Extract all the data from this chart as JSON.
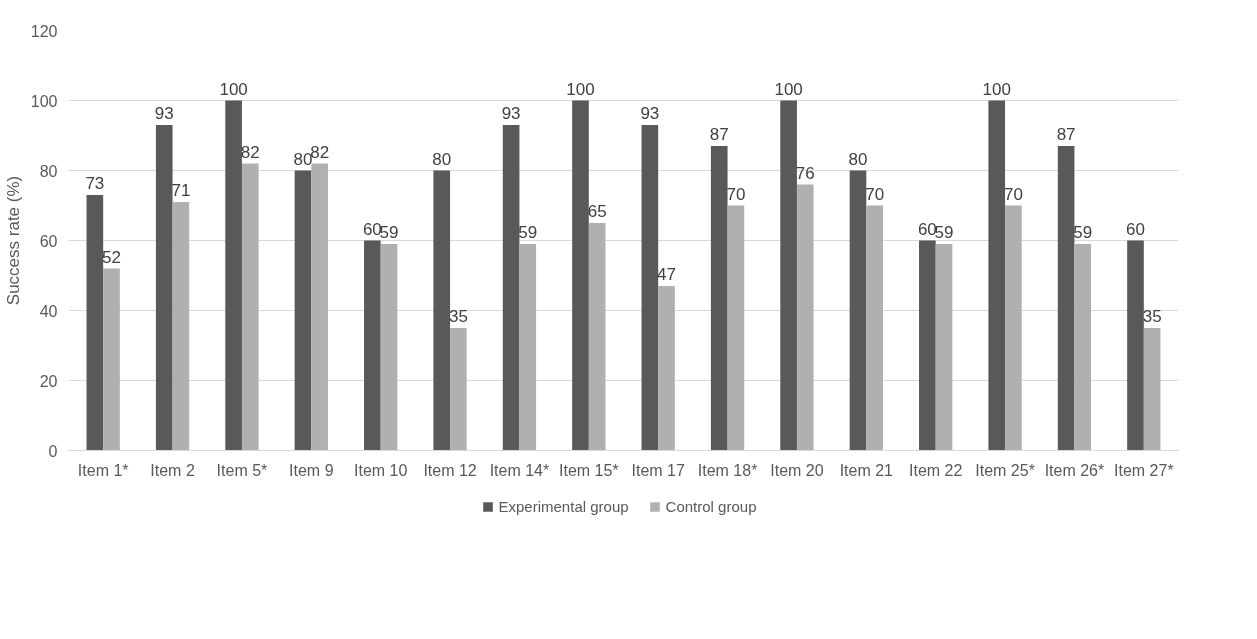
{
  "chart_data": {
    "type": "bar",
    "ylabel": "Success rate (%)",
    "categories": [
      "Item 1*",
      "Item 2",
      "Item 5*",
      "Item 9",
      "Item 10",
      "Item 12",
      "Item 14*",
      "Item 15*",
      "Item 17",
      "Item 18*",
      "Item 20",
      "Item 21",
      "Item 22",
      "Item 25*",
      "Item 26*",
      "Item 27*"
    ],
    "series": [
      {
        "name": "Experimental group",
        "color": "#595959",
        "values": [
          73,
          93,
          100,
          80,
          60,
          80,
          93,
          100,
          93,
          87,
          100,
          80,
          60,
          100,
          87,
          60
        ]
      },
      {
        "name": "Control group",
        "color": "#b0b0b0",
        "values": [
          52,
          71,
          82,
          82,
          59,
          35,
          59,
          65,
          47,
          70,
          76,
          70,
          59,
          70,
          59,
          35
        ]
      }
    ],
    "ylim": [
      0,
      120
    ],
    "yticks": [
      0,
      20,
      40,
      60,
      80,
      100,
      120
    ],
    "grid": "y",
    "legend": "bottom",
    "data_labels": true
  }
}
